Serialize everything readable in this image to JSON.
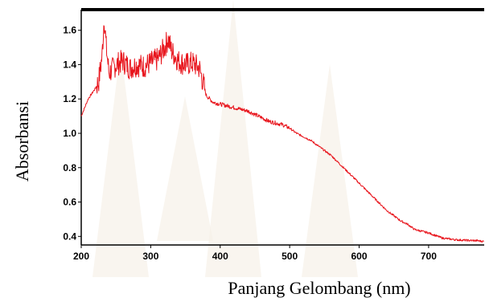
{
  "chart_data": {
    "type": "line",
    "title": "",
    "xlabel": "Panjang Gelombang (nm)",
    "ylabel": "Absorbansi",
    "xlim": [
      200,
      780
    ],
    "ylim": [
      0.35,
      1.72
    ],
    "x_ticks": [
      "200",
      "300",
      "400",
      "500",
      "600",
      "700"
    ],
    "y_ticks": [
      "0.4",
      "0.6",
      "0.8",
      "1.0",
      "1.2",
      "1.4",
      "1.6"
    ],
    "grid": false,
    "legend": "none",
    "colors": {
      "line": "#e8141c",
      "axis": "#000000",
      "watermark": "#f6f1e8"
    },
    "series": [
      {
        "x": [
          200,
          210,
          220,
          225,
          230,
          233,
          236,
          240,
          250,
          260,
          270,
          280,
          290,
          300,
          310,
          320,
          325,
          330,
          340,
          350,
          360,
          370,
          380,
          390,
          400,
          410,
          420,
          430,
          440,
          450,
          460,
          470,
          480,
          490,
          500,
          510,
          520,
          530,
          540,
          550,
          560,
          570,
          580,
          590,
          600,
          610,
          620,
          630,
          640,
          650,
          660,
          670,
          680,
          690,
          700,
          710,
          720,
          730,
          740,
          750,
          760,
          770,
          780
        ],
        "y": [
          1.1,
          1.2,
          1.26,
          1.3,
          1.45,
          1.68,
          1.5,
          1.35,
          1.4,
          1.42,
          1.38,
          1.4,
          1.39,
          1.41,
          1.43,
          1.5,
          1.55,
          1.48,
          1.42,
          1.4,
          1.41,
          1.38,
          1.22,
          1.18,
          1.17,
          1.16,
          1.15,
          1.14,
          1.13,
          1.11,
          1.09,
          1.07,
          1.06,
          1.05,
          1.03,
          1.0,
          0.98,
          0.96,
          0.93,
          0.9,
          0.87,
          0.83,
          0.79,
          0.75,
          0.71,
          0.67,
          0.63,
          0.59,
          0.55,
          0.52,
          0.49,
          0.47,
          0.44,
          0.43,
          0.42,
          0.405,
          0.39,
          0.385,
          0.38,
          0.378,
          0.376,
          0.375,
          0.37
        ]
      }
    ]
  }
}
